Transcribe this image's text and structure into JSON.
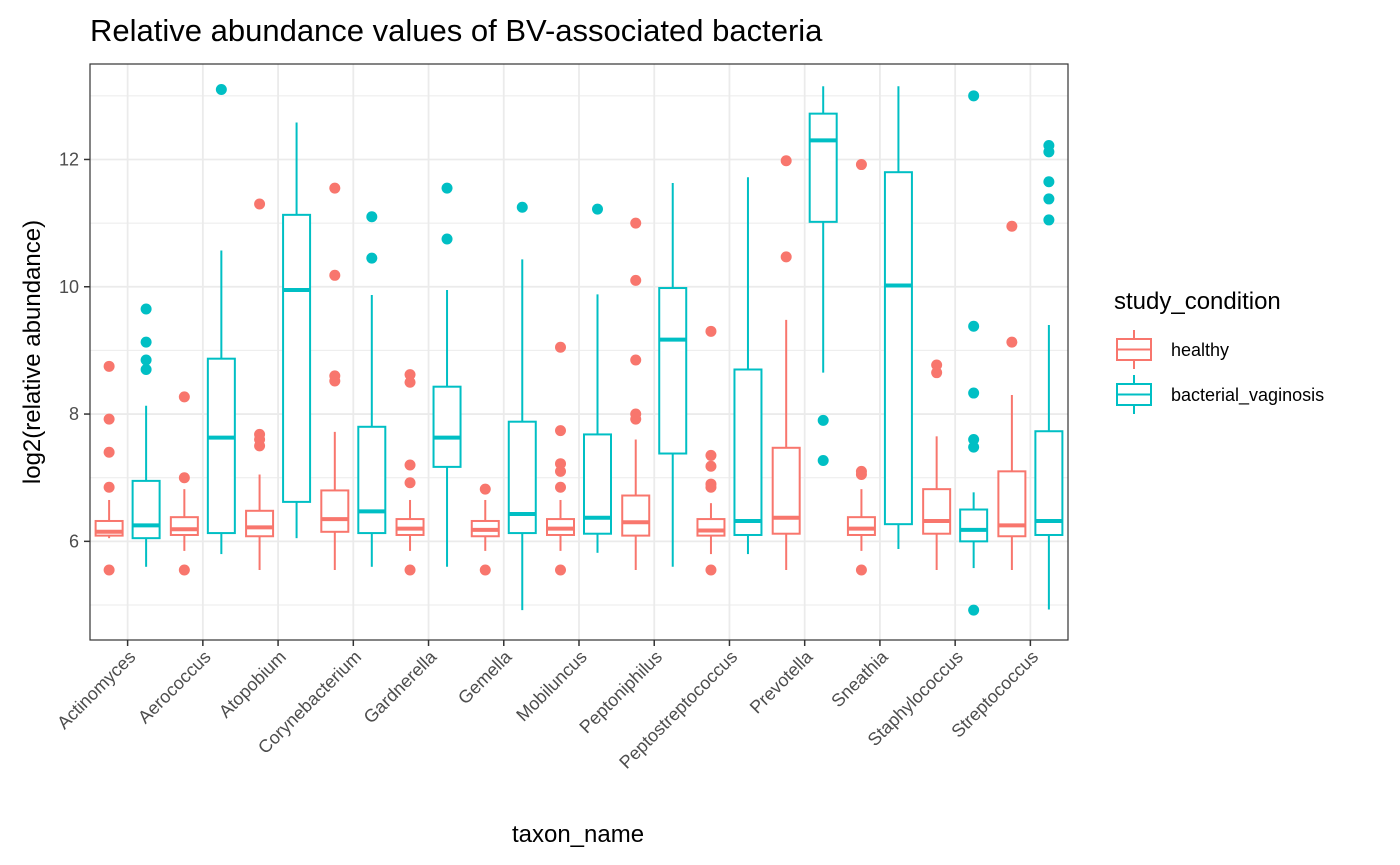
{
  "chart_data": {
    "type": "boxplot",
    "title": "Relative abundance values of BV-associated bacteria",
    "xlabel": "taxon_name",
    "ylabel": "log2(relative abundance)",
    "ylim": [
      4.45,
      13.5
    ],
    "y_ticks": [
      6,
      8,
      10,
      12
    ],
    "grid": true,
    "legend": {
      "title": "study_condition",
      "placement": "right",
      "entries": [
        "healthy",
        "bacterial_vaginosis"
      ]
    },
    "colors": {
      "healthy": "#F8766D",
      "bacterial_vaginosis": "#00BFC4"
    },
    "categories": [
      "Actinomyces",
      "Aerococcus",
      "Atopobium",
      "Corynebacterium",
      "Gardnerella",
      "Gemella",
      "Mobiluncus",
      "Peptoniphilus",
      "Peptostreptococcus",
      "Prevotella",
      "Sneathia",
      "Staphylococcus",
      "Streptococcus"
    ],
    "series": [
      {
        "name": "healthy",
        "boxes": [
          {
            "min": 6.05,
            "q1": 6.09,
            "median": 6.15,
            "q3": 6.32,
            "max": 6.65,
            "outliers": [
              5.55,
              6.85,
              7.4,
              7.92,
              8.75
            ]
          },
          {
            "min": 5.85,
            "q1": 6.1,
            "median": 6.19,
            "q3": 6.38,
            "max": 6.82,
            "outliers": [
              5.55,
              7.0,
              8.27
            ]
          },
          {
            "min": 5.55,
            "q1": 6.08,
            "median": 6.22,
            "q3": 6.48,
            "max": 7.05,
            "outliers": [
              7.5,
              7.6,
              7.68,
              11.3
            ]
          },
          {
            "min": 5.55,
            "q1": 6.15,
            "median": 6.35,
            "q3": 6.8,
            "max": 7.72,
            "outliers": [
              8.52,
              8.6,
              10.18,
              11.55
            ]
          },
          {
            "min": 5.85,
            "q1": 6.1,
            "median": 6.2,
            "q3": 6.35,
            "max": 6.65,
            "outliers": [
              5.55,
              6.92,
              7.2,
              8.5,
              8.62
            ]
          },
          {
            "min": 5.85,
            "q1": 6.08,
            "median": 6.18,
            "q3": 6.32,
            "max": 6.65,
            "outliers": [
              5.55,
              6.82
            ]
          },
          {
            "min": 5.85,
            "q1": 6.1,
            "median": 6.2,
            "q3": 6.35,
            "max": 6.65,
            "outliers": [
              5.55,
              6.85,
              7.1,
              7.22,
              7.74,
              9.05
            ]
          },
          {
            "min": 5.55,
            "q1": 6.09,
            "median": 6.3,
            "q3": 6.72,
            "max": 7.6,
            "outliers": [
              7.92,
              8.0,
              8.85,
              10.1,
              11.0
            ]
          },
          {
            "min": 5.8,
            "q1": 6.09,
            "median": 6.17,
            "q3": 6.35,
            "max": 6.6,
            "outliers": [
              5.55,
              6.85,
              6.9,
              7.18,
              7.35,
              9.3
            ]
          },
          {
            "min": 5.55,
            "q1": 6.12,
            "median": 6.37,
            "q3": 7.47,
            "max": 9.48,
            "outliers": [
              10.47,
              11.98
            ]
          },
          {
            "min": 5.85,
            "q1": 6.1,
            "median": 6.2,
            "q3": 6.38,
            "max": 6.82,
            "outliers": [
              5.55,
              7.05,
              7.1,
              11.92
            ]
          },
          {
            "min": 5.55,
            "q1": 6.12,
            "median": 6.32,
            "q3": 6.82,
            "max": 7.65,
            "outliers": [
              8.65,
              8.77
            ]
          },
          {
            "min": 5.55,
            "q1": 6.08,
            "median": 6.25,
            "q3": 7.1,
            "max": 8.3,
            "outliers": [
              9.13,
              10.95
            ]
          }
        ]
      },
      {
        "name": "bacterial_vaginosis",
        "boxes": [
          {
            "min": 5.6,
            "q1": 6.05,
            "median": 6.25,
            "q3": 6.95,
            "max": 8.13,
            "outliers": [
              8.7,
              8.85,
              9.13,
              9.65
            ]
          },
          {
            "min": 5.8,
            "q1": 6.13,
            "median": 7.63,
            "q3": 8.87,
            "max": 10.57,
            "outliers": [
              13.1
            ]
          },
          {
            "min": 6.05,
            "q1": 6.62,
            "median": 9.95,
            "q3": 11.13,
            "max": 12.58,
            "outliers": []
          },
          {
            "min": 5.6,
            "q1": 6.13,
            "median": 6.47,
            "q3": 7.8,
            "max": 9.87,
            "outliers": [
              10.45,
              11.1
            ]
          },
          {
            "min": 5.6,
            "q1": 7.17,
            "median": 7.63,
            "q3": 8.43,
            "max": 9.95,
            "outliers": [
              10.75,
              11.55
            ]
          },
          {
            "min": 4.92,
            "q1": 6.13,
            "median": 6.43,
            "q3": 7.88,
            "max": 10.43,
            "outliers": [
              11.25
            ]
          },
          {
            "min": 5.82,
            "q1": 6.12,
            "median": 6.37,
            "q3": 7.68,
            "max": 9.88,
            "outliers": [
              11.22
            ]
          },
          {
            "min": 5.6,
            "q1": 7.38,
            "median": 9.17,
            "q3": 9.98,
            "max": 11.63,
            "outliers": []
          },
          {
            "min": 5.8,
            "q1": 6.1,
            "median": 6.32,
            "q3": 8.7,
            "max": 11.72,
            "outliers": []
          },
          {
            "min": 8.65,
            "q1": 11.02,
            "median": 12.3,
            "q3": 12.72,
            "max": 13.15,
            "outliers": [
              7.27,
              7.9
            ]
          },
          {
            "min": 5.88,
            "q1": 6.27,
            "median": 10.02,
            "q3": 11.8,
            "max": 13.15,
            "outliers": []
          },
          {
            "min": 5.58,
            "q1": 6.0,
            "median": 6.18,
            "q3": 6.5,
            "max": 6.77,
            "outliers": [
              4.92,
              7.48,
              7.6,
              8.33,
              9.38,
              13.0
            ]
          },
          {
            "min": 4.93,
            "q1": 6.1,
            "median": 6.32,
            "q3": 7.73,
            "max": 9.4,
            "outliers": [
              11.05,
              11.38,
              11.65,
              12.12,
              12.22
            ]
          }
        ]
      }
    ]
  }
}
